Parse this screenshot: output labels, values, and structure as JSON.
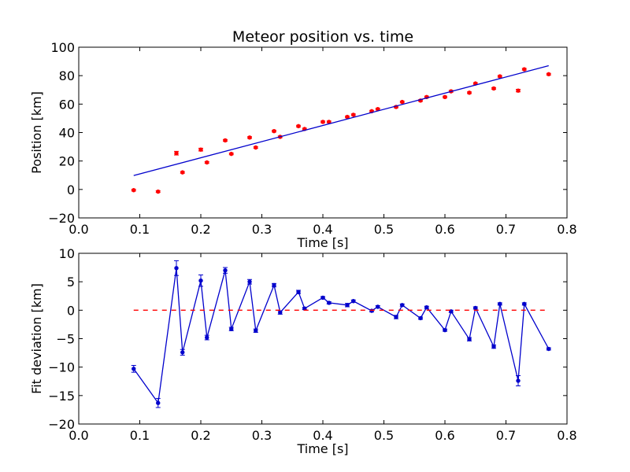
{
  "chart_data": [
    {
      "type": "scatter",
      "title": "Meteor position vs. time",
      "xlabel": "Time [s]",
      "ylabel": "Position [km]",
      "xlim": [
        0.0,
        0.8
      ],
      "ylim": [
        -20,
        100
      ],
      "xticks": [
        "0.0",
        "0.1",
        "0.2",
        "0.3",
        "0.4",
        "0.5",
        "0.6",
        "0.7",
        "0.8"
      ],
      "yticks": [
        "−20",
        "0",
        "20",
        "40",
        "60",
        "80",
        "100"
      ],
      "grid": false,
      "colors": {
        "points": "#ff0000",
        "fit_line": "#0000cc"
      },
      "series": [
        {
          "kind": "points-with-errorbars",
          "x": [
            0.09,
            0.13,
            0.16,
            0.17,
            0.2,
            0.21,
            0.24,
            0.25,
            0.28,
            0.29,
            0.32,
            0.33,
            0.36,
            0.37,
            0.4,
            0.41,
            0.44,
            0.45,
            0.48,
            0.49,
            0.52,
            0.53,
            0.56,
            0.57,
            0.6,
            0.61,
            0.64,
            0.65,
            0.68,
            0.69,
            0.72,
            0.73,
            0.77
          ],
          "y": [
            -0.5,
            -1.5,
            25.5,
            12,
            28,
            19,
            34.5,
            25,
            36.5,
            29.5,
            41,
            37,
            44.5,
            42.5,
            47.5,
            47.5,
            51,
            52.5,
            55,
            56.5,
            58,
            61.5,
            62.5,
            65,
            65,
            69,
            68,
            74.5,
            71,
            79.5,
            69.5,
            84.5,
            81
          ],
          "err": [
            0.6,
            0.6,
            1.3,
            0.6,
            1.0,
            0.6,
            0.6,
            0.6,
            0.6,
            0.6,
            0.6,
            0.6,
            0.6,
            0.6,
            0.6,
            0.6,
            0.6,
            0.6,
            0.6,
            0.6,
            0.6,
            0.6,
            0.6,
            0.6,
            0.6,
            0.6,
            0.6,
            0.6,
            0.6,
            0.6,
            0.9,
            0.6,
            0.6
          ]
        },
        {
          "kind": "fit-line",
          "x": [
            0.09,
            0.77
          ],
          "y": [
            9.8,
            87
          ]
        }
      ]
    },
    {
      "type": "line",
      "title": "",
      "xlabel": "Time [s]",
      "ylabel": "Fit deviation [km]",
      "xlim": [
        0.0,
        0.8
      ],
      "ylim": [
        -20,
        10
      ],
      "xticks": [
        "0.0",
        "0.1",
        "0.2",
        "0.3",
        "0.4",
        "0.5",
        "0.6",
        "0.7",
        "0.8"
      ],
      "yticks": [
        "−20",
        "−15",
        "−10",
        "−5",
        "0",
        "5",
        "10"
      ],
      "grid": false,
      "colors": {
        "line": "#0000cc",
        "zero_line": "#ff0000"
      },
      "series": [
        {
          "kind": "line-with-errorbars",
          "x": [
            0.09,
            0.13,
            0.16,
            0.17,
            0.2,
            0.21,
            0.24,
            0.25,
            0.28,
            0.29,
            0.32,
            0.33,
            0.36,
            0.37,
            0.4,
            0.41,
            0.44,
            0.45,
            0.48,
            0.49,
            0.52,
            0.53,
            0.56,
            0.57,
            0.6,
            0.61,
            0.64,
            0.65,
            0.68,
            0.69,
            0.72,
            0.73,
            0.77
          ],
          "y": [
            -10.3,
            -16.3,
            7.4,
            -7.4,
            5.2,
            -4.8,
            7.0,
            -3.3,
            5.0,
            -3.6,
            4.4,
            -0.4,
            3.2,
            0.3,
            2.2,
            1.3,
            0.9,
            1.6,
            -0.1,
            0.6,
            -1.2,
            0.9,
            -1.4,
            0.5,
            -3.5,
            -0.2,
            -5.1,
            0.4,
            -6.4,
            1.1,
            -12.4,
            1.1,
            -6.8
          ],
          "err": [
            0.6,
            0.8,
            1.3,
            0.5,
            1.0,
            0.4,
            0.5,
            0.3,
            0.4,
            0.3,
            0.3,
            0.3,
            0.3,
            0.2,
            0.2,
            0.2,
            0.3,
            0.2,
            0.2,
            0.2,
            0.3,
            0.2,
            0.2,
            0.2,
            0.2,
            0.2,
            0.3,
            0.2,
            0.3,
            0.2,
            0.9,
            0.2,
            0.2
          ]
        },
        {
          "kind": "zero-reference-dashed",
          "x": [
            0.09,
            0.77
          ],
          "y": [
            0,
            0
          ]
        }
      ]
    }
  ]
}
